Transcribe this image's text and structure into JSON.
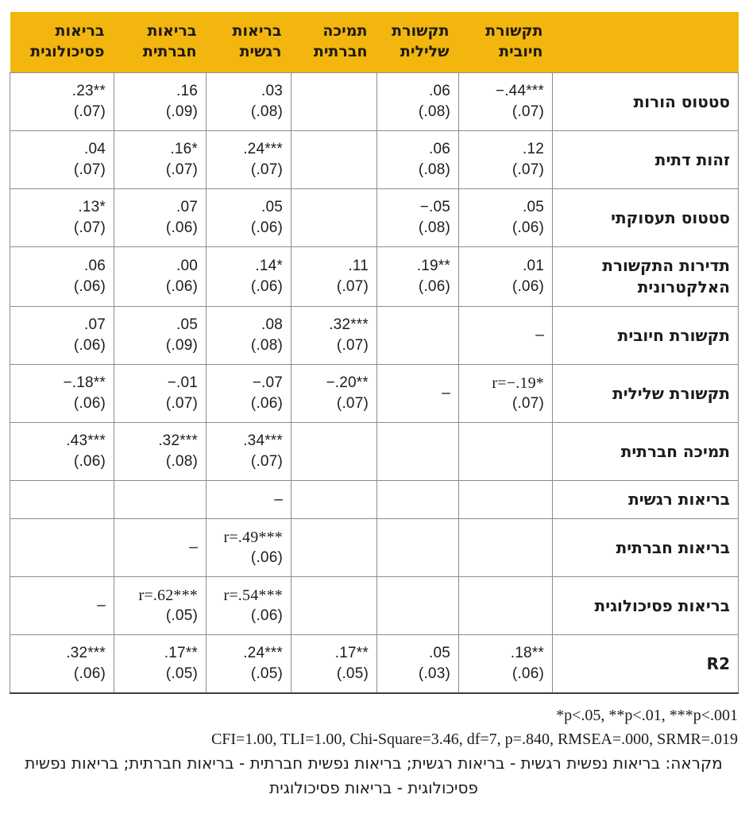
{
  "table": {
    "columns": [
      {
        "key": "pos",
        "label": "תקשורת\nחיובית"
      },
      {
        "key": "neg",
        "label": "תקשורת\nשלילית"
      },
      {
        "key": "sup",
        "label": "תמיכה\nחברתית"
      },
      {
        "key": "emo",
        "label": "בריאות\nרגשית"
      },
      {
        "key": "soc",
        "label": "בריאות\nחברתית"
      },
      {
        "key": "psy",
        "label": "בריאות\nפסיכולוגית"
      }
    ],
    "rows": [
      {
        "label": "סטטוס הורות",
        "cells": [
          {
            "v": "−.44***",
            "se": "(.07)"
          },
          {
            "v": ".06",
            "se": "(.08)"
          },
          null,
          {
            "v": ".03",
            "se": "(.08)"
          },
          {
            "v": ".16",
            "se": "(.09)"
          },
          {
            "v": ".23**",
            "se": "(.07)"
          }
        ]
      },
      {
        "label": "זהות דתית",
        "cells": [
          {
            "v": ".12",
            "se": "(.07)"
          },
          {
            "v": ".06",
            "se": "(.08)"
          },
          null,
          {
            "v": ".24***",
            "se": "(.07)"
          },
          {
            "v": ".16*",
            "se": "(.07)"
          },
          {
            "v": ".04",
            "se": "(.07)"
          }
        ]
      },
      {
        "label": "סטטוס תעסוקתי",
        "cells": [
          {
            "v": ".05",
            "se": "(.06)"
          },
          {
            "v": "−.05",
            "se": "(.08)"
          },
          null,
          {
            "v": ".05",
            "se": "(.06)"
          },
          {
            "v": ".07",
            "se": "(.06)"
          },
          {
            "v": ".13*",
            "se": "(.07)"
          }
        ]
      },
      {
        "label": "תדירות התקשורת האלקטרונית",
        "cells": [
          {
            "v": ".01",
            "se": "(.06)"
          },
          {
            "v": ".19**",
            "se": "(.06)"
          },
          {
            "v": ".11",
            "se": "(.07)"
          },
          {
            "v": ".14*",
            "se": "(.06)"
          },
          {
            "v": ".00",
            "se": "(.06)"
          },
          {
            "v": ".06",
            "se": "(.06)"
          }
        ]
      },
      {
        "label": "תקשורת חיובית",
        "cells": [
          {
            "v": "–"
          },
          null,
          {
            "v": ".32***",
            "se": "(.07)"
          },
          {
            "v": ".08",
            "se": "(.08)"
          },
          {
            "v": ".05",
            "se": "(.09)"
          },
          {
            "v": ".07",
            "se": "(.06)"
          }
        ]
      },
      {
        "label": "תקשורת שלילית",
        "cells": [
          {
            "v": "r=−.19*",
            "se": "(.07)"
          },
          {
            "v": "–"
          },
          {
            "v": "−.20**",
            "se": "(.07)"
          },
          {
            "v": "−.07",
            "se": "(.06)"
          },
          {
            "v": "−.01",
            "se": "(.07)"
          },
          {
            "v": "−.18**",
            "se": "(.06)"
          }
        ]
      },
      {
        "label": "תמיכה חברתית",
        "cells": [
          null,
          null,
          null,
          {
            "v": ".34***",
            "se": "(.07)"
          },
          {
            "v": ".32***",
            "se": "(.08)"
          },
          {
            "v": ".43***",
            "se": "(.06)"
          }
        ]
      },
      {
        "label": "בריאות רגשית",
        "cells": [
          null,
          null,
          null,
          {
            "v": "–"
          },
          null,
          null
        ]
      },
      {
        "label": "בריאות חברתית",
        "cells": [
          null,
          null,
          null,
          {
            "v": "r=.49***",
            "se": "(.06)"
          },
          {
            "v": "–"
          },
          null
        ]
      },
      {
        "label": "בריאות פסיכולוגית",
        "cells": [
          null,
          null,
          null,
          {
            "v": "r=.54***",
            "se": "(.06)"
          },
          {
            "v": "r=.62***",
            "se": "(.05)"
          },
          {
            "v": "–"
          }
        ]
      },
      {
        "label": "R2",
        "cells": [
          {
            "v": ".18**",
            "se": "(.06)"
          },
          {
            "v": ".05",
            "se": "(.03)"
          },
          {
            "v": ".17**",
            "se": "(.05)"
          },
          {
            "v": ".24***",
            "se": "(.05)"
          },
          {
            "v": ".17**",
            "se": "(.05)"
          },
          {
            "v": ".32***",
            "se": "(.06)"
          }
        ]
      }
    ]
  },
  "footer": {
    "significance": "*p<.05, **p<.01, ***p<.001",
    "fit_indices": "CFI=1.00, TLI=1.00, Chi-Square=3.46, df=7, p=.840, RMSEA=.000, SRMR=.019",
    "legend": "מקראה: בריאות נפשית רגשית - בריאות רגשית; בריאות נפשית חברתית - בריאות חברתית; בריאות נפשית פסיכולוגית - בריאות פסיכולוגית"
  },
  "colors": {
    "header_background": "#F2B60E",
    "grid_line": "#8d8d8d",
    "bottom_rule": "#3f3f3f",
    "text": "#1c1c1c"
  }
}
